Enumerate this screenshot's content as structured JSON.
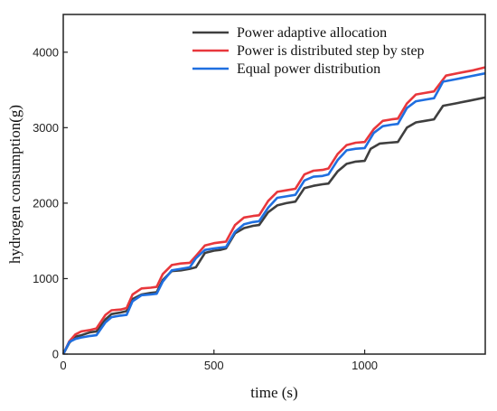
{
  "chart_data": {
    "type": "line",
    "title": "",
    "xlabel": "time (s)",
    "ylabel": "hydrogen consumption(g)",
    "xlim": [
      0,
      1400
    ],
    "ylim": [
      0,
      4500
    ],
    "x_ticks": [
      0,
      500,
      1000
    ],
    "y_ticks": [
      0,
      1000,
      2000,
      3000,
      4000
    ],
    "legend_position": "top-right",
    "grid": false,
    "series": [
      {
        "name": "Power adaptive allocation",
        "color": "#3f3f3f",
        "points": [
          [
            0,
            0
          ],
          [
            20,
            150
          ],
          [
            40,
            230
          ],
          [
            60,
            250
          ],
          [
            90,
            290
          ],
          [
            110,
            300
          ],
          [
            140,
            460
          ],
          [
            160,
            530
          ],
          [
            190,
            550
          ],
          [
            210,
            570
          ],
          [
            230,
            730
          ],
          [
            260,
            790
          ],
          [
            290,
            810
          ],
          [
            310,
            820
          ],
          [
            330,
            980
          ],
          [
            360,
            1100
          ],
          [
            390,
            1110
          ],
          [
            420,
            1130
          ],
          [
            440,
            1150
          ],
          [
            470,
            1340
          ],
          [
            500,
            1370
          ],
          [
            520,
            1380
          ],
          [
            540,
            1400
          ],
          [
            570,
            1600
          ],
          [
            600,
            1670
          ],
          [
            630,
            1700
          ],
          [
            650,
            1710
          ],
          [
            680,
            1880
          ],
          [
            710,
            1970
          ],
          [
            740,
            2000
          ],
          [
            770,
            2020
          ],
          [
            800,
            2200
          ],
          [
            830,
            2230
          ],
          [
            860,
            2250
          ],
          [
            880,
            2260
          ],
          [
            910,
            2420
          ],
          [
            940,
            2520
          ],
          [
            970,
            2550
          ],
          [
            1000,
            2560
          ],
          [
            1020,
            2720
          ],
          [
            1050,
            2790
          ],
          [
            1080,
            2800
          ],
          [
            1110,
            2810
          ],
          [
            1140,
            3000
          ],
          [
            1170,
            3070
          ],
          [
            1200,
            3090
          ],
          [
            1230,
            3110
          ],
          [
            1260,
            3290
          ],
          [
            1300,
            3320
          ],
          [
            1350,
            3360
          ],
          [
            1400,
            3400
          ]
        ]
      },
      {
        "name": "Power is distributed step by step",
        "color": "#e8373c",
        "points": [
          [
            0,
            0
          ],
          [
            20,
            170
          ],
          [
            40,
            260
          ],
          [
            60,
            300
          ],
          [
            90,
            320
          ],
          [
            110,
            340
          ],
          [
            140,
            520
          ],
          [
            160,
            580
          ],
          [
            190,
            590
          ],
          [
            210,
            610
          ],
          [
            230,
            790
          ],
          [
            260,
            870
          ],
          [
            290,
            880
          ],
          [
            310,
            890
          ],
          [
            330,
            1060
          ],
          [
            360,
            1180
          ],
          [
            390,
            1200
          ],
          [
            420,
            1210
          ],
          [
            440,
            1300
          ],
          [
            470,
            1440
          ],
          [
            500,
            1470
          ],
          [
            520,
            1480
          ],
          [
            540,
            1490
          ],
          [
            570,
            1710
          ],
          [
            600,
            1810
          ],
          [
            630,
            1830
          ],
          [
            650,
            1840
          ],
          [
            680,
            2030
          ],
          [
            710,
            2150
          ],
          [
            740,
            2170
          ],
          [
            770,
            2190
          ],
          [
            800,
            2380
          ],
          [
            830,
            2430
          ],
          [
            860,
            2440
          ],
          [
            880,
            2460
          ],
          [
            910,
            2650
          ],
          [
            940,
            2770
          ],
          [
            970,
            2800
          ],
          [
            1000,
            2810
          ],
          [
            1030,
            2980
          ],
          [
            1060,
            3090
          ],
          [
            1090,
            3110
          ],
          [
            1110,
            3120
          ],
          [
            1140,
            3320
          ],
          [
            1170,
            3440
          ],
          [
            1200,
            3460
          ],
          [
            1230,
            3480
          ],
          [
            1270,
            3690
          ],
          [
            1320,
            3730
          ],
          [
            1360,
            3760
          ],
          [
            1400,
            3800
          ]
        ]
      },
      {
        "name": "Equal power distribution",
        "color": "#1f6fe0",
        "points": [
          [
            0,
            0
          ],
          [
            20,
            160
          ],
          [
            40,
            200
          ],
          [
            60,
            220
          ],
          [
            90,
            240
          ],
          [
            110,
            250
          ],
          [
            140,
            420
          ],
          [
            160,
            490
          ],
          [
            190,
            510
          ],
          [
            210,
            520
          ],
          [
            230,
            700
          ],
          [
            260,
            780
          ],
          [
            290,
            790
          ],
          [
            310,
            800
          ],
          [
            330,
            960
          ],
          [
            360,
            1110
          ],
          [
            390,
            1130
          ],
          [
            420,
            1150
          ],
          [
            440,
            1270
          ],
          [
            470,
            1380
          ],
          [
            500,
            1400
          ],
          [
            520,
            1410
          ],
          [
            540,
            1420
          ],
          [
            570,
            1620
          ],
          [
            600,
            1720
          ],
          [
            630,
            1750
          ],
          [
            650,
            1760
          ],
          [
            680,
            1940
          ],
          [
            710,
            2070
          ],
          [
            740,
            2090
          ],
          [
            770,
            2110
          ],
          [
            800,
            2300
          ],
          [
            830,
            2350
          ],
          [
            860,
            2360
          ],
          [
            880,
            2380
          ],
          [
            910,
            2570
          ],
          [
            940,
            2700
          ],
          [
            970,
            2720
          ],
          [
            1000,
            2730
          ],
          [
            1030,
            2930
          ],
          [
            1060,
            3020
          ],
          [
            1090,
            3040
          ],
          [
            1110,
            3050
          ],
          [
            1140,
            3260
          ],
          [
            1170,
            3350
          ],
          [
            1200,
            3370
          ],
          [
            1230,
            3390
          ],
          [
            1260,
            3610
          ],
          [
            1300,
            3640
          ],
          [
            1350,
            3680
          ],
          [
            1400,
            3720
          ]
        ]
      }
    ]
  }
}
